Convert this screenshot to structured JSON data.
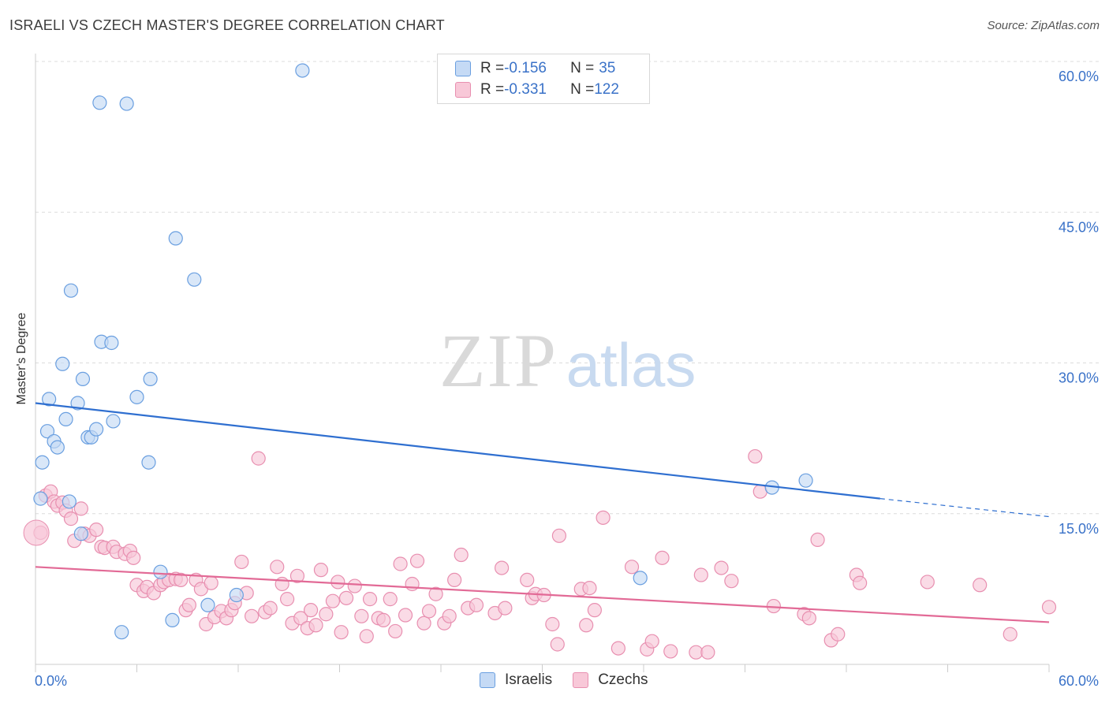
{
  "chart_data": {
    "type": "scatter",
    "title": "ISRAELI VS CZECH MASTER'S DEGREE CORRELATION CHART",
    "source": "Source: ZipAtlas.com",
    "xlabel": "",
    "ylabel": "Master's Degree",
    "xlim": [
      0,
      60
    ],
    "ylim": [
      0,
      60
    ],
    "x_tick_labels": [
      "0.0%",
      "60.0%"
    ],
    "y_tick_labels": [
      "15.0%",
      "30.0%",
      "45.0%",
      "60.0%"
    ],
    "y_ticks": [
      15,
      30,
      45,
      60
    ],
    "watermark": {
      "zip": "ZIP",
      "atlas": "atlas"
    },
    "legend": [
      {
        "r_label": "R = ",
        "r_value": "-0.156",
        "n_label": "N = ",
        "n_value": "35"
      },
      {
        "r_label": "R = ",
        "r_value": "-0.331",
        "n_label": "N = ",
        "n_value": "122"
      }
    ],
    "series": [
      {
        "name": "Israelis",
        "color": "#6a9fe0",
        "fill": "#c5daf5",
        "line_color": "#2f6fd0",
        "trend": {
          "x0": 0,
          "y0": 26.0,
          "x1": 50,
          "y1": 16.5,
          "dash_x1": 60,
          "dash_y1": 14.7
        },
        "points": [
          [
            0.3,
            16.5
          ],
          [
            0.4,
            20.1
          ],
          [
            0.7,
            23.2
          ],
          [
            0.8,
            26.4
          ],
          [
            1.1,
            22.2
          ],
          [
            1.3,
            21.6
          ],
          [
            1.6,
            29.9
          ],
          [
            1.8,
            24.4
          ],
          [
            2.0,
            16.2
          ],
          [
            2.1,
            37.2
          ],
          [
            2.5,
            26.0
          ],
          [
            2.7,
            13.0
          ],
          [
            2.8,
            28.4
          ],
          [
            3.1,
            22.6
          ],
          [
            3.3,
            22.6
          ],
          [
            3.6,
            23.4
          ],
          [
            3.8,
            55.9
          ],
          [
            3.9,
            32.1
          ],
          [
            4.5,
            32.0
          ],
          [
            4.6,
            24.2
          ],
          [
            5.1,
            3.2
          ],
          [
            5.4,
            55.8
          ],
          [
            6.0,
            26.6
          ],
          [
            6.7,
            20.1
          ],
          [
            6.8,
            28.4
          ],
          [
            7.4,
            9.2
          ],
          [
            8.1,
            4.4
          ],
          [
            8.3,
            42.4
          ],
          [
            9.4,
            38.3
          ],
          [
            10.2,
            5.9
          ],
          [
            11.9,
            6.9
          ],
          [
            15.8,
            59.1
          ],
          [
            35.8,
            8.6
          ],
          [
            43.6,
            17.6
          ],
          [
            45.6,
            18.3
          ]
        ]
      },
      {
        "name": "Czechs",
        "color": "#e88fb0",
        "fill": "#f8c8d8",
        "line_color": "#e26a96",
        "trend": {
          "x0": 0,
          "y0": 9.7,
          "x1": 60,
          "y1": 4.2
        },
        "points": [
          [
            0.3,
            13.1
          ],
          [
            0.6,
            16.8
          ],
          [
            0.9,
            17.2
          ],
          [
            1.1,
            16.2
          ],
          [
            1.3,
            15.8
          ],
          [
            1.6,
            16.1
          ],
          [
            1.8,
            15.3
          ],
          [
            2.1,
            14.5
          ],
          [
            2.3,
            12.3
          ],
          [
            2.7,
            15.5
          ],
          [
            2.9,
            13.0
          ],
          [
            3.2,
            12.8
          ],
          [
            3.6,
            13.4
          ],
          [
            3.9,
            11.7
          ],
          [
            4.1,
            11.6
          ],
          [
            4.6,
            11.7
          ],
          [
            4.8,
            11.2
          ],
          [
            5.3,
            11.0
          ],
          [
            5.6,
            11.3
          ],
          [
            5.8,
            10.6
          ],
          [
            6.0,
            7.9
          ],
          [
            6.4,
            7.3
          ],
          [
            6.6,
            7.7
          ],
          [
            7.0,
            7.1
          ],
          [
            7.4,
            7.9
          ],
          [
            7.6,
            8.2
          ],
          [
            7.9,
            8.4
          ],
          [
            8.3,
            8.5
          ],
          [
            8.6,
            8.4
          ],
          [
            8.9,
            5.4
          ],
          [
            9.1,
            5.9
          ],
          [
            9.5,
            8.4
          ],
          [
            9.8,
            7.5
          ],
          [
            10.1,
            4.0
          ],
          [
            10.4,
            8.1
          ],
          [
            10.6,
            4.7
          ],
          [
            11.0,
            5.3
          ],
          [
            11.3,
            4.6
          ],
          [
            11.6,
            5.4
          ],
          [
            11.8,
            6.1
          ],
          [
            12.2,
            10.2
          ],
          [
            12.5,
            7.1
          ],
          [
            12.8,
            4.8
          ],
          [
            13.2,
            20.5
          ],
          [
            13.6,
            5.2
          ],
          [
            13.9,
            5.6
          ],
          [
            14.3,
            9.7
          ],
          [
            14.6,
            8.0
          ],
          [
            14.9,
            6.5
          ],
          [
            15.2,
            4.1
          ],
          [
            15.5,
            8.8
          ],
          [
            15.7,
            4.6
          ],
          [
            16.1,
            3.6
          ],
          [
            16.3,
            5.4
          ],
          [
            16.6,
            3.9
          ],
          [
            16.9,
            9.4
          ],
          [
            17.2,
            5.0
          ],
          [
            17.6,
            6.3
          ],
          [
            17.9,
            8.2
          ],
          [
            18.1,
            3.2
          ],
          [
            18.4,
            6.6
          ],
          [
            18.9,
            7.8
          ],
          [
            19.3,
            4.8
          ],
          [
            19.6,
            2.8
          ],
          [
            19.8,
            6.5
          ],
          [
            20.3,
            4.6
          ],
          [
            20.6,
            4.4
          ],
          [
            21.0,
            6.5
          ],
          [
            21.3,
            3.3
          ],
          [
            21.6,
            10.0
          ],
          [
            21.9,
            4.9
          ],
          [
            22.3,
            8.0
          ],
          [
            22.6,
            10.3
          ],
          [
            23.0,
            4.1
          ],
          [
            23.3,
            5.3
          ],
          [
            23.7,
            7.0
          ],
          [
            24.2,
            4.1
          ],
          [
            24.5,
            4.8
          ],
          [
            24.8,
            8.4
          ],
          [
            25.2,
            10.9
          ],
          [
            25.6,
            5.6
          ],
          [
            26.1,
            5.9
          ],
          [
            27.2,
            5.1
          ],
          [
            27.6,
            9.6
          ],
          [
            27.8,
            5.6
          ],
          [
            29.1,
            8.4
          ],
          [
            29.4,
            6.6
          ],
          [
            29.6,
            7.0
          ],
          [
            30.1,
            6.9
          ],
          [
            30.6,
            4.0
          ],
          [
            30.9,
            2.0
          ],
          [
            31.0,
            12.8
          ],
          [
            32.3,
            7.5
          ],
          [
            32.6,
            3.9
          ],
          [
            32.8,
            7.6
          ],
          [
            33.1,
            5.4
          ],
          [
            33.6,
            14.6
          ],
          [
            34.5,
            1.6
          ],
          [
            35.3,
            9.7
          ],
          [
            36.2,
            1.5
          ],
          [
            36.5,
            2.3
          ],
          [
            37.1,
            10.6
          ],
          [
            37.6,
            1.3
          ],
          [
            39.1,
            1.2
          ],
          [
            39.4,
            8.9
          ],
          [
            39.8,
            1.2
          ],
          [
            40.6,
            9.6
          ],
          [
            41.2,
            8.3
          ],
          [
            42.6,
            20.7
          ],
          [
            42.9,
            17.2
          ],
          [
            43.7,
            5.8
          ],
          [
            45.5,
            5.0
          ],
          [
            45.8,
            4.6
          ],
          [
            46.3,
            12.4
          ],
          [
            47.1,
            2.4
          ],
          [
            47.5,
            3.0
          ],
          [
            48.6,
            8.9
          ],
          [
            48.8,
            8.1
          ],
          [
            52.8,
            8.2
          ],
          [
            55.9,
            7.9
          ],
          [
            57.7,
            3.0
          ],
          [
            60.0,
            5.7
          ]
        ]
      }
    ]
  },
  "bottom_legend": [
    {
      "label": "Israelis"
    },
    {
      "label": "Czechs"
    }
  ]
}
